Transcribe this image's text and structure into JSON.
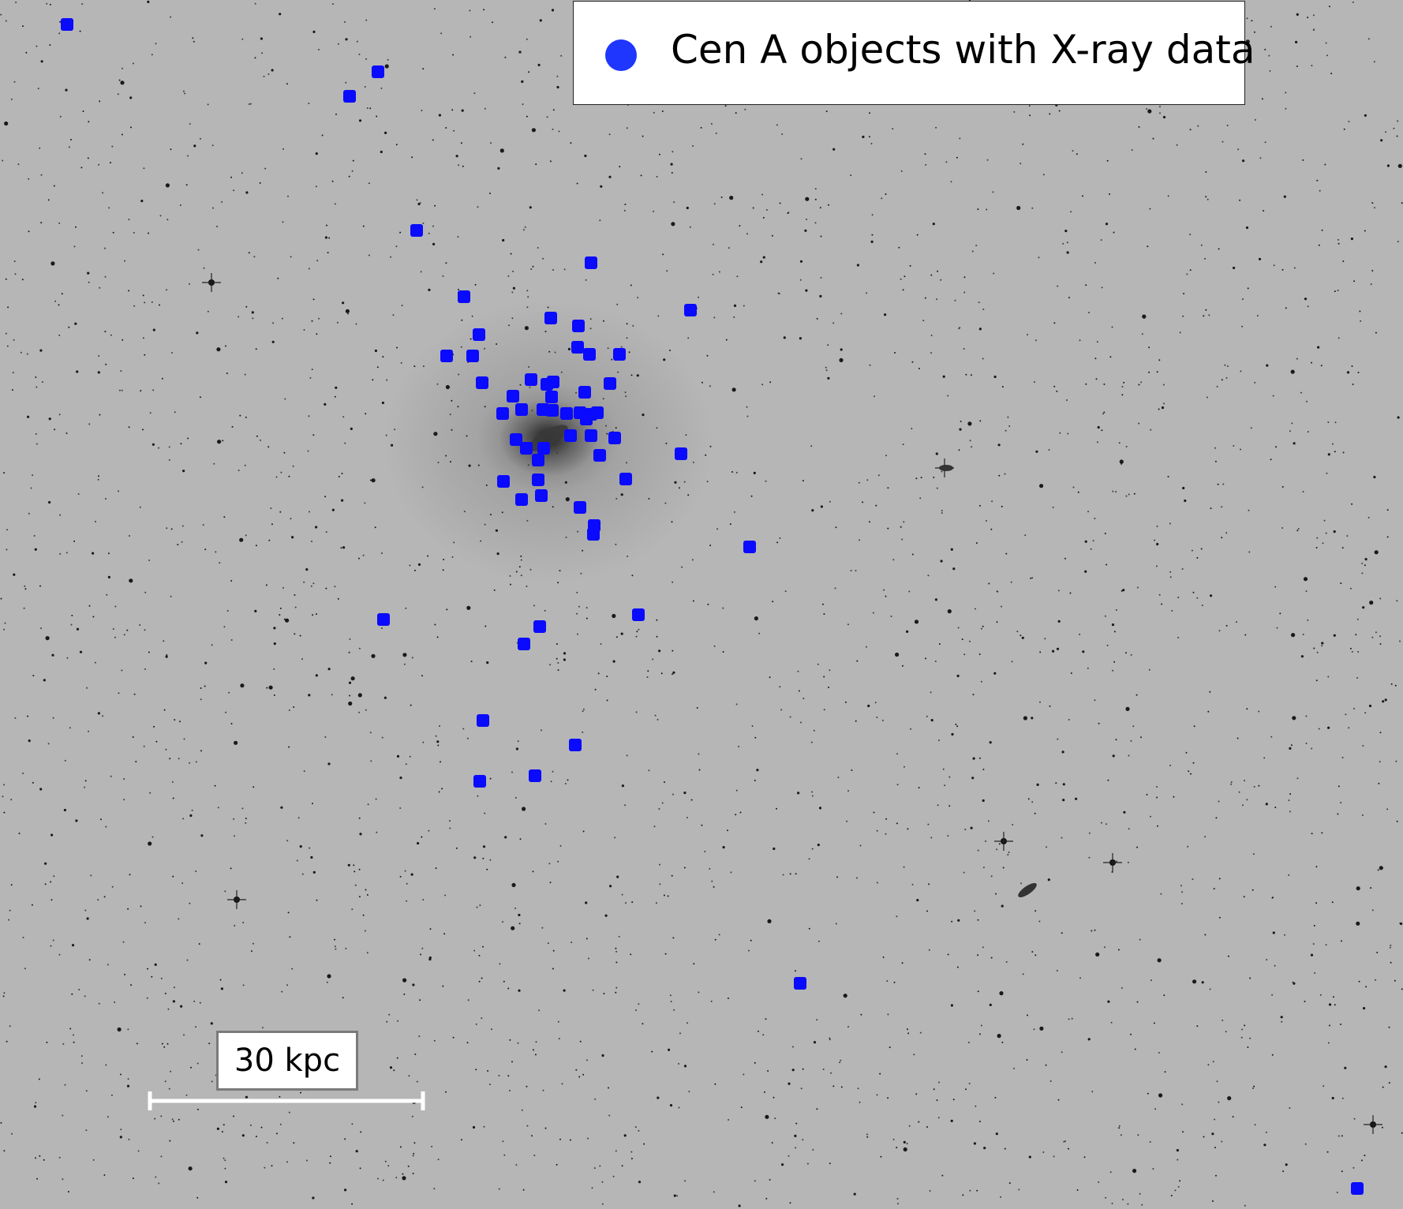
{
  "legend": {
    "label": "Cen A objects with X-ray data",
    "marker_color": "#1f36ff"
  },
  "scale_bar": {
    "label": "30 kpc"
  },
  "marker_color": "#0a0aff",
  "background_color": "#b6b6b6"
}
